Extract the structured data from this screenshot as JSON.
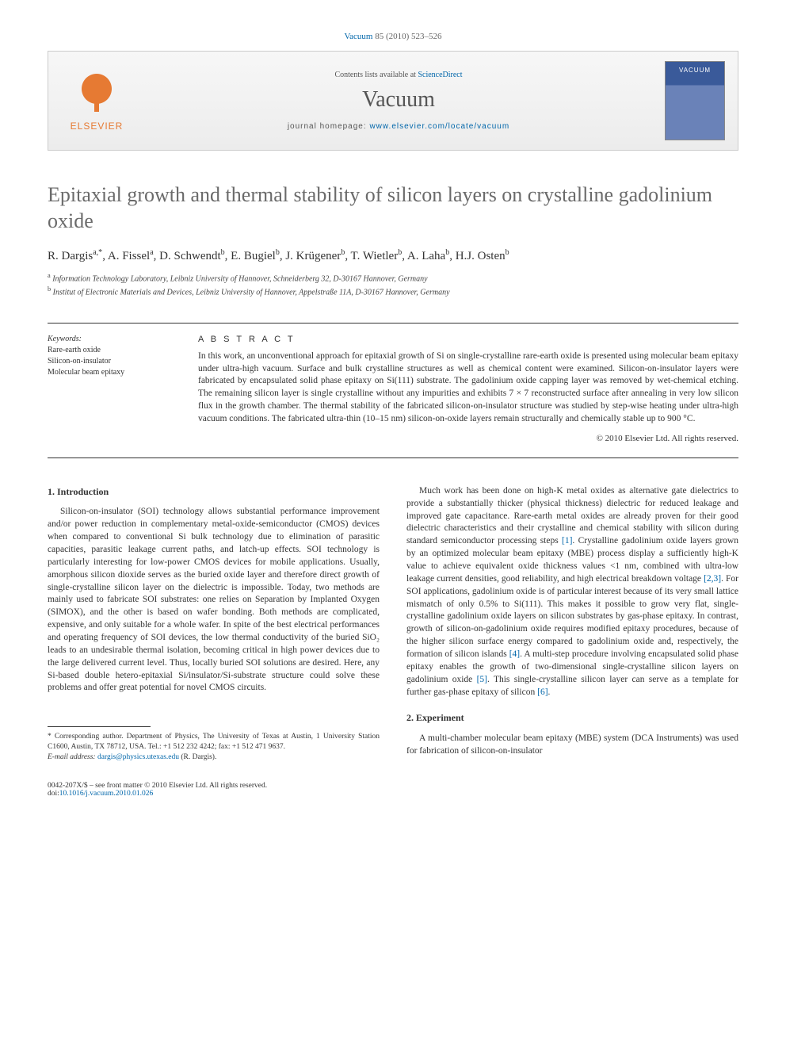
{
  "citation": {
    "journal_link": "Vacuum",
    "vol_pages": " 85 (2010) 523–526"
  },
  "header": {
    "contents_prefix": "Contents lists available at ",
    "contents_link": "ScienceDirect",
    "journal": "Vacuum",
    "homepage_prefix": "journal homepage: ",
    "homepage_url": "www.elsevier.com/locate/vacuum",
    "publisher": "ELSEVIER",
    "cover_label": "VACUUM"
  },
  "title": "Epitaxial growth and thermal stability of silicon layers on crystalline gadolinium oxide",
  "authors_html": "R. Dargis<sup>a,*</sup>, A. Fissel<sup>a</sup>, D. Schwendt<sup>b</sup>, E. Bugiel<sup>b</sup>, J. Krügener<sup>b</sup>, T. Wietler<sup>b</sup>, A. Laha<sup>b</sup>, H.J. Osten<sup>b</sup>",
  "affiliations": [
    {
      "sup": "a",
      "text": "Information Technology Laboratory, Leibniz University of Hannover, Schneiderberg 32, D-30167 Hannover, Germany"
    },
    {
      "sup": "b",
      "text": "Institut of Electronic Materials and Devices, Leibniz University of Hannover, Appelstraße 11A, D-30167 Hannover, Germany"
    }
  ],
  "keywords": {
    "head": "Keywords:",
    "items": [
      "Rare-earth oxide",
      "Silicon-on-insulator",
      "Molecular beam epitaxy"
    ]
  },
  "abstract": {
    "head": "A B S T R A C T",
    "text": "In this work, an unconventional approach for epitaxial growth of Si on single-crystalline rare-earth oxide is presented using molecular beam epitaxy under ultra-high vacuum. Surface and bulk crystalline structures as well as chemical content were examined. Silicon-on-insulator layers were fabricated by encapsulated solid phase epitaxy on Si(111) substrate. The gadolinium oxide capping layer was removed by wet-chemical etching. The remaining silicon layer is single crystalline without any impurities and exhibits 7 × 7 reconstructed surface after annealing in very low silicon flux in the growth chamber. The thermal stability of the fabricated silicon-on-insulator structure was studied by step-wise heating under ultra-high vacuum conditions. The fabricated ultra-thin (10–15 nm) silicon-on-oxide layers remain structurally and chemically stable up to 900 °C.",
    "copyright": "© 2010 Elsevier Ltd. All rights reserved."
  },
  "sections": {
    "intro_head": "1. Introduction",
    "intro_p1": "Silicon-on-insulator (SOI) technology allows substantial performance improvement and/or power reduction in complementary metal-oxide-semiconductor (CMOS) devices when compared to conventional Si bulk technology due to elimination of parasitic capacities, parasitic leakage current paths, and latch-up effects. SOI technology is particularly interesting for low-power CMOS devices for mobile applications. Usually, amorphous silicon dioxide serves as the buried oxide layer and therefore direct growth of single-crystalline silicon layer on the dielectric is impossible. Today, two methods are mainly used to fabricate SOI substrates: one relies on Separation by Implanted Oxygen (SIMOX), and the other is based on wafer bonding. Both methods are complicated, expensive, and only suitable for a whole wafer. In spite of the best electrical performances and operating frequency of SOI devices, the low thermal conductivity of the buried SiO₂ leads to an undesirable thermal isolation, becoming critical in high power devices due to the large delivered current level. Thus, locally buried SOI solutions are desired. Here, any Si-based double hetero-epitaxial Si/insulator/Si-substrate structure could solve these problems and offer great potential for novel CMOS circuits.",
    "intro_p2_pre": "Much work has been done on high-K metal oxides as alternative gate dielectrics to provide a substantially thicker (physical thickness) dielectric for reduced leakage and improved gate capacitance. Rare-earth metal oxides are already proven for their good dielectric characteristics and their crystalline and chemical stability with silicon during standard semiconductor processing steps ",
    "ref1": "[1]",
    "intro_p2_mid1": ". Crystalline gadolinium oxide layers grown by an optimized molecular beam epitaxy (MBE) process display a sufficiently high-K value to achieve equivalent oxide thickness values <1 nm, combined with ultra-low leakage current densities, good reliability, and high electrical breakdown voltage ",
    "ref23": "[2,3]",
    "intro_p2_mid2": ". For SOI applications, gadolinium oxide is of particular interest because of its very small lattice mismatch of only 0.5% to Si(111). This makes it possible to grow very flat, single-crystalline gadolinium oxide layers on silicon substrates by gas-phase epitaxy. In contrast, growth of silicon-on-gadolinium oxide requires modified epitaxy procedures, because of the higher silicon surface energy compared to gadolinium oxide and, respectively, the formation of silicon islands ",
    "ref4": "[4]",
    "intro_p2_mid3": ". A multi-step procedure involving encapsulated solid phase epitaxy enables the growth of two-dimensional single-crystalline silicon layers on gadolinium oxide ",
    "ref5": "[5]",
    "intro_p2_mid4": ". This single-crystalline silicon layer can serve as a template for further gas-phase epitaxy of silicon ",
    "ref6": "[6]",
    "intro_p2_end": ".",
    "exp_head": "2. Experiment",
    "exp_p1": "A multi-chamber molecular beam epitaxy (MBE) system (DCA Instruments) was used for fabrication of silicon-on-insulator"
  },
  "footnote": {
    "corr": "* Corresponding author. Department of Physics, The University of Texas at Austin, 1 University Station C1600, Austin, TX 78712, USA. Tel.: +1 512 232 4242; fax: +1 512 471 9637.",
    "email_label": "E-mail address: ",
    "email": "dargis@physics.utexas.edu",
    "email_suffix": " (R. Dargis)."
  },
  "footer": {
    "left_line1": "0042-207X/$ – see front matter © 2010 Elsevier Ltd. All rights reserved.",
    "doi_prefix": "doi:",
    "doi": "10.1016/j.vacuum.2010.01.026"
  }
}
